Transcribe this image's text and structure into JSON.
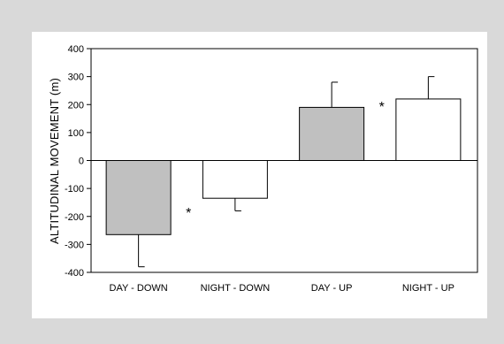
{
  "chart_data": {
    "type": "bar",
    "categories": [
      "DAY - DOWN",
      "NIGHT - DOWN",
      "DAY - UP",
      "NIGHT - UP"
    ],
    "values": [
      -265,
      -135,
      190,
      220
    ],
    "error_plus": [
      0,
      0,
      90,
      80
    ],
    "error_minus": [
      115,
      45,
      0,
      0
    ],
    "bar_colors": [
      "#c0c0c0",
      "#ffffff",
      "#c0c0c0",
      "#ffffff"
    ],
    "ylabel": "ALTITUDINAL MOVEMENT (m)",
    "ylim": [
      -400,
      400
    ],
    "yticks": [
      -400,
      -300,
      -200,
      -100,
      0,
      100,
      200,
      300,
      400
    ],
    "annotations": [
      {
        "text": "*",
        "between": [
          0,
          1
        ]
      },
      {
        "text": "*",
        "between": [
          2,
          3
        ]
      }
    ],
    "grid": false
  }
}
